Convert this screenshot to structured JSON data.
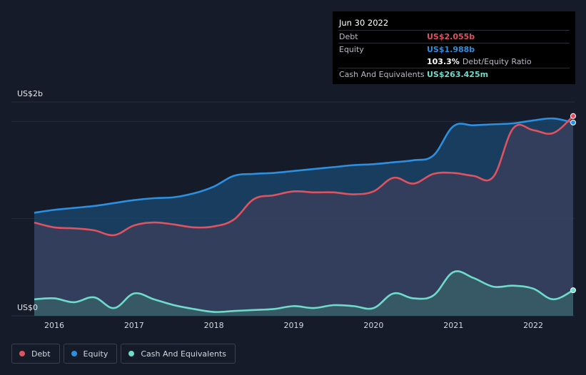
{
  "tooltip": {
    "date": "Jun 30 2022",
    "debt_label": "Debt",
    "debt_value": "US$2.055b",
    "equity_label": "Equity",
    "equity_value": "US$1.988b",
    "ratio_value": "103.3%",
    "ratio_label": "Debt/Equity Ratio",
    "cash_label": "Cash And Equivalents",
    "cash_value": "US$263.425m"
  },
  "legend": [
    {
      "label": "Debt",
      "color": "#e0525f"
    },
    {
      "label": "Equity",
      "color": "#2d8fe0"
    },
    {
      "label": "Cash And Equivalents",
      "color": "#6fdccb"
    }
  ],
  "chart_data": {
    "type": "area",
    "y_axis_top_label": "US$2b",
    "y_axis_bottom_label": "US$0",
    "ylim": [
      0,
      2.2
    ],
    "xlim": [
      2015.75,
      2022.5
    ],
    "x_ticks": [
      "2016",
      "2017",
      "2018",
      "2019",
      "2020",
      "2021",
      "2022"
    ],
    "grid": true,
    "legend_position": "bottom-left",
    "series": [
      {
        "name": "Debt",
        "color": "#e0525f",
        "x": [
          2015.75,
          2016.0,
          2016.25,
          2016.5,
          2016.75,
          2017.0,
          2017.25,
          2017.5,
          2017.75,
          2018.0,
          2018.25,
          2018.5,
          2018.75,
          2019.0,
          2019.25,
          2019.5,
          2019.75,
          2020.0,
          2020.25,
          2020.5,
          2020.75,
          2021.0,
          2021.25,
          2021.5,
          2021.75,
          2022.0,
          2022.25,
          2022.5
        ],
        "values": [
          0.96,
          0.91,
          0.9,
          0.88,
          0.83,
          0.93,
          0.96,
          0.94,
          0.91,
          0.92,
          0.99,
          1.2,
          1.24,
          1.28,
          1.27,
          1.27,
          1.25,
          1.28,
          1.42,
          1.36,
          1.46,
          1.47,
          1.44,
          1.43,
          1.93,
          1.91,
          1.88,
          2.055
        ]
      },
      {
        "name": "Equity",
        "color": "#2d8fe0",
        "x": [
          2015.75,
          2016.0,
          2016.25,
          2016.5,
          2016.75,
          2017.0,
          2017.25,
          2017.5,
          2017.75,
          2018.0,
          2018.25,
          2018.5,
          2018.75,
          2019.0,
          2019.25,
          2019.5,
          2019.75,
          2020.0,
          2020.25,
          2020.5,
          2020.75,
          2021.0,
          2021.25,
          2021.5,
          2021.75,
          2022.0,
          2022.25,
          2022.5
        ],
        "values": [
          1.06,
          1.09,
          1.11,
          1.13,
          1.16,
          1.19,
          1.21,
          1.22,
          1.26,
          1.33,
          1.44,
          1.46,
          1.47,
          1.49,
          1.51,
          1.53,
          1.55,
          1.56,
          1.58,
          1.6,
          1.65,
          1.95,
          1.96,
          1.97,
          1.98,
          2.01,
          2.03,
          1.988
        ]
      },
      {
        "name": "Cash And Equivalents",
        "color": "#6fdccb",
        "x": [
          2015.75,
          2016.0,
          2016.25,
          2016.5,
          2016.75,
          2017.0,
          2017.25,
          2017.5,
          2017.75,
          2018.0,
          2018.25,
          2018.5,
          2018.75,
          2019.0,
          2019.25,
          2019.5,
          2019.75,
          2020.0,
          2020.25,
          2020.5,
          2020.75,
          2021.0,
          2021.25,
          2021.5,
          2021.75,
          2022.0,
          2022.25,
          2022.5
        ],
        "values": [
          0.17,
          0.18,
          0.14,
          0.19,
          0.08,
          0.23,
          0.17,
          0.11,
          0.07,
          0.04,
          0.05,
          0.06,
          0.07,
          0.1,
          0.08,
          0.11,
          0.1,
          0.08,
          0.23,
          0.18,
          0.21,
          0.45,
          0.39,
          0.3,
          0.31,
          0.28,
          0.17,
          0.263
        ]
      }
    ]
  }
}
